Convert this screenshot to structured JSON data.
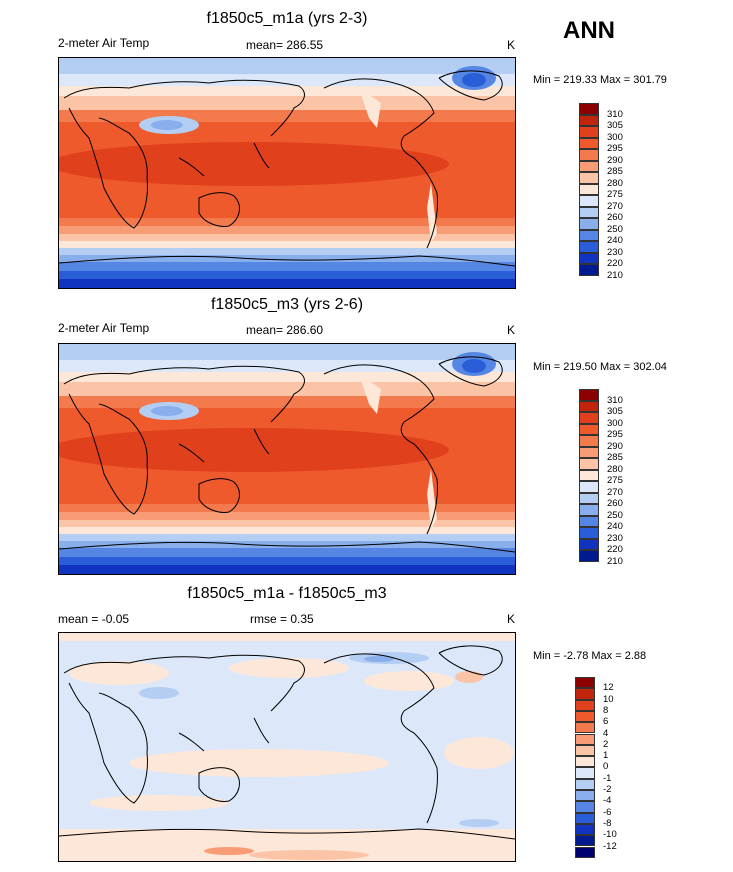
{
  "season": "ANN",
  "panels": [
    {
      "title": "f1850c5_m1a (yrs 2-3)",
      "left_label": "2-meter Air Temp",
      "center_label": "mean= 286.55",
      "units": "K",
      "minmax": "Min = 219.33 Max = 301.79",
      "colorbar": {
        "labels": [
          "310",
          "305",
          "300",
          "295",
          "290",
          "285",
          "280",
          "275",
          "270",
          "260",
          "250",
          "240",
          "230",
          "220",
          "210"
        ],
        "colors": [
          "#8b0000",
          "#c0240a",
          "#e0401c",
          "#ef5a2c",
          "#f37a4c",
          "#f89c76",
          "#fbc4a6",
          "#fde7d8",
          "#dce8fa",
          "#b4cdf2",
          "#88aeec",
          "#5686e4",
          "#2a5ed8",
          "#1034c0",
          "#001a90"
        ]
      }
    },
    {
      "title": "f1850c5_m3 (yrs 2-6)",
      "left_label": "2-meter Air Temp",
      "center_label": "mean= 286.60",
      "units": "K",
      "minmax": "Min = 219.50 Max = 302.04",
      "colorbar": {
        "labels": [
          "310",
          "305",
          "300",
          "295",
          "290",
          "285",
          "280",
          "275",
          "270",
          "260",
          "250",
          "240",
          "230",
          "220",
          "210"
        ],
        "colors": [
          "#8b0000",
          "#c0240a",
          "#e0401c",
          "#ef5a2c",
          "#f37a4c",
          "#f89c76",
          "#fbc4a6",
          "#fde7d8",
          "#dce8fa",
          "#b4cdf2",
          "#88aeec",
          "#5686e4",
          "#2a5ed8",
          "#1034c0",
          "#001a90"
        ]
      }
    },
    {
      "title": "f1850c5_m1a - f1850c5_m3",
      "left_label": "mean =  -0.05",
      "center_label": "rmse =  0.35",
      "units": "K",
      "minmax": "Min =  -2.78 Max =   2.88",
      "colorbar": {
        "labels": [
          "12",
          "10",
          "8",
          "6",
          "4",
          "2",
          "1",
          "0",
          "-1",
          "-2",
          "-4",
          "-6",
          "-8",
          "-10",
          "-12"
        ],
        "colors": [
          "#8b0000",
          "#c0240a",
          "#e0401c",
          "#ef5a2c",
          "#f37a4c",
          "#f89c76",
          "#fbc4a6",
          "#fde7d8",
          "#dce8fa",
          "#b4cdf2",
          "#88aeec",
          "#5686e4",
          "#2a5ed8",
          "#1034c0",
          "#001a90",
          "#000070"
        ]
      }
    }
  ]
}
